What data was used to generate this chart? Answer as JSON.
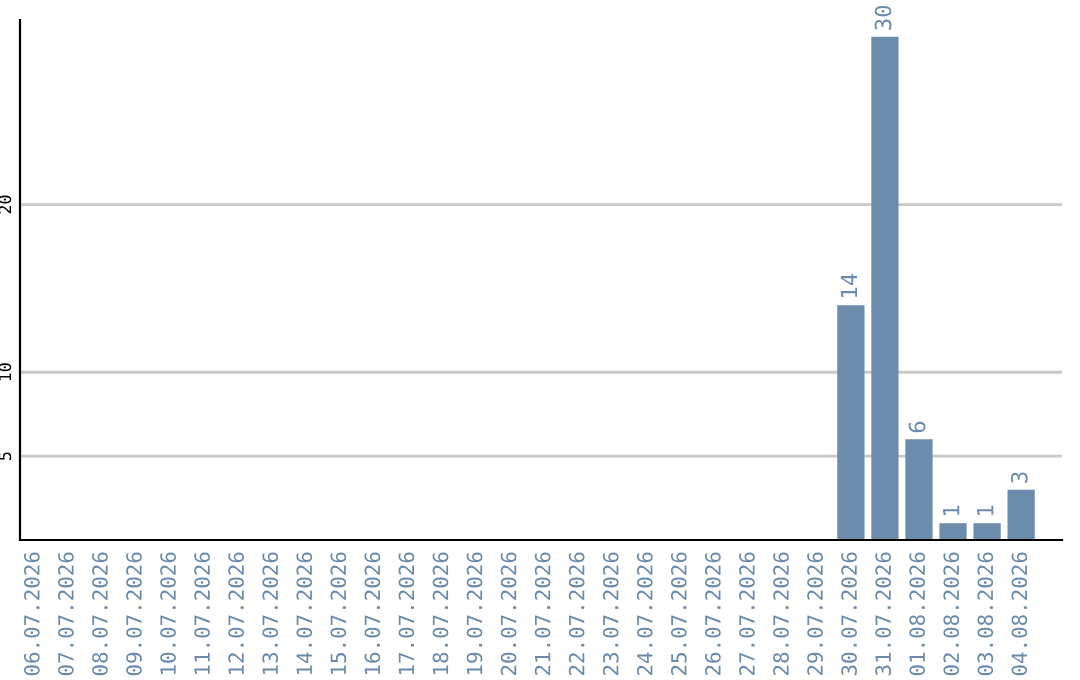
{
  "chart_data": {
    "type": "bar",
    "categories": [
      "06.07.2026",
      "07.07.2026",
      "08.07.2026",
      "09.07.2026",
      "10.07.2026",
      "11.07.2026",
      "12.07.2026",
      "13.07.2026",
      "14.07.2026",
      "15.07.2026",
      "16.07.2026",
      "17.07.2026",
      "18.07.2026",
      "19.07.2026",
      "20.07.2026",
      "21.07.2026",
      "22.07.2026",
      "23.07.2026",
      "24.07.2026",
      "25.07.2026",
      "26.07.2026",
      "27.07.2026",
      "28.07.2026",
      "29.07.2026",
      "30.07.2026",
      "31.07.2026",
      "01.08.2026",
      "02.08.2026",
      "03.08.2026",
      "04.08.2026"
    ],
    "values": [
      0,
      0,
      0,
      0,
      0,
      0,
      0,
      0,
      0,
      0,
      0,
      0,
      0,
      0,
      0,
      0,
      0,
      0,
      0,
      0,
      0,
      0,
      0,
      0,
      14,
      30,
      6,
      1,
      1,
      3
    ],
    "value_labels": [
      null,
      null,
      null,
      null,
      null,
      null,
      null,
      null,
      null,
      null,
      null,
      null,
      null,
      null,
      null,
      null,
      null,
      null,
      null,
      null,
      null,
      null,
      null,
      null,
      "14",
      "30",
      "6",
      "1",
      "1",
      "3"
    ],
    "color": "#6b8cab",
    "ylim": [
      0,
      31
    ],
    "yticks": [
      5,
      10,
      20
    ],
    "grid": "y",
    "legend": false
  }
}
